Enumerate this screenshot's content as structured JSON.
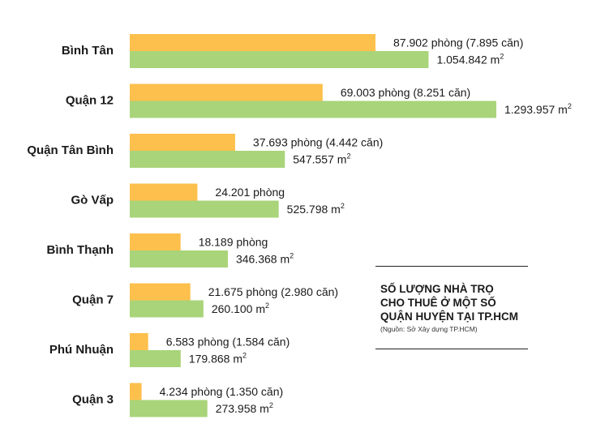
{
  "chart_data": {
    "type": "bar",
    "orientation": "horizontal",
    "categories": [
      "Bình Tân",
      "Quận 12",
      "Quận Tân Bình",
      "Gò Vấp",
      "Bình Thạnh",
      "Quận 7",
      "Phú Nhuận",
      "Quận 3"
    ],
    "series": [
      {
        "unit": "phòng",
        "color": "#fdc04c",
        "values": [
          87902,
          69003,
          37693,
          24201,
          18189,
          21675,
          6583,
          4234
        ],
        "labels": [
          "87.902 phòng (7.895 căn)",
          "69.003 phòng (8.251 căn)",
          "37.693 phòng (4.442 căn)",
          "24.201 phòng",
          "18.189 phòng",
          "21.675 phòng (2.980 căn)",
          "6.583 phòng (1.584 căn)",
          "4.234 phòng (1.350 căn)"
        ]
      },
      {
        "unit": "m2",
        "color": "#a9d47a",
        "values": [
          1054842,
          1293957,
          547557,
          525798,
          346368,
          260100,
          179868,
          273958
        ],
        "labels": [
          "1.054.842 m",
          "1.293.957 m",
          "547.557 m",
          "525.798 m",
          "346.368 m",
          "260.100 m",
          "179.868 m",
          "273.958 m"
        ],
        "label_superscript": "2"
      }
    ],
    "title": "SỐ LƯỢNG NHÀ TRỌ\nCHO THUÊ Ở MỘT SỐ\nQUẬN HUYỆN TẠI TP.HCM",
    "source": "(Nguồn: Sở Xây dựng TP.HCM)",
    "grid": false,
    "legend": "none"
  }
}
